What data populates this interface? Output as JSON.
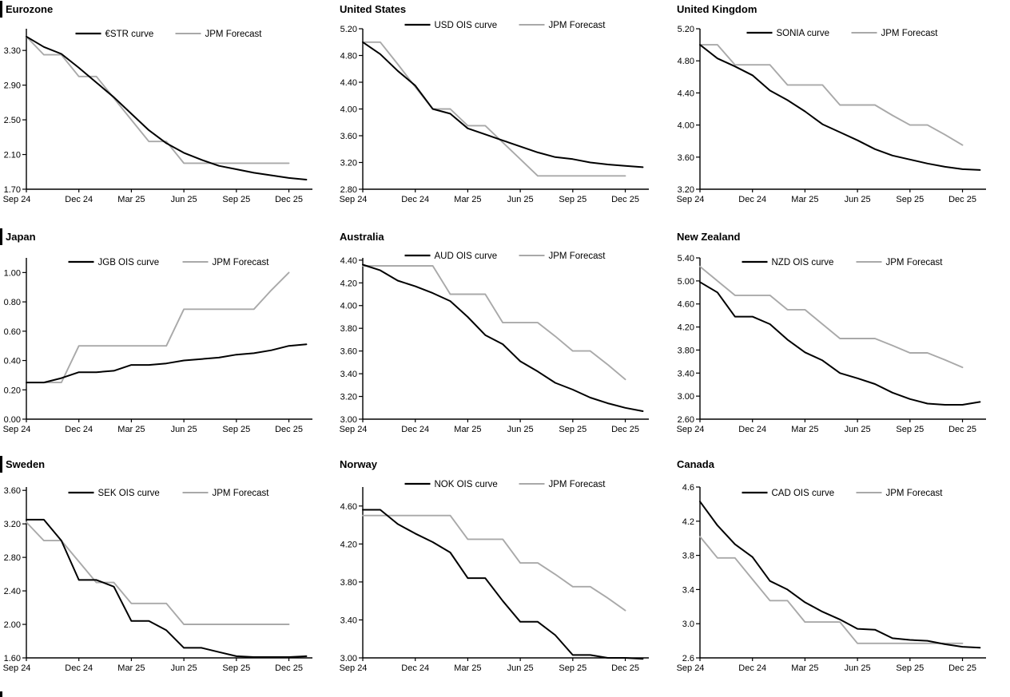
{
  "styles": {
    "background": "#ffffff",
    "curve_color": "#000000",
    "forecast_color": "#a9a9a9",
    "axis_color": "#000000",
    "text_color": "#000000"
  },
  "chart_data": [
    {
      "title": "Eurozone",
      "type": "line",
      "grid": false,
      "legend_position": "top-center",
      "x_unit": "monthly, Sep 2024 - Jan 2026",
      "x_ticks": [
        "Sep 24",
        "Dec 24",
        "Mar 25",
        "Jun 25",
        "Sep 25",
        "Dec 25"
      ],
      "y_ticks": [
        "1.70",
        "2.10",
        "2.50",
        "2.90",
        "3.30"
      ],
      "ylim": [
        1.7,
        3.55
      ],
      "series": [
        {
          "name": "€STR curve",
          "role": "curve",
          "color": "#000000",
          "values": [
            3.46,
            3.34,
            3.26,
            3.1,
            2.93,
            2.76,
            2.57,
            2.38,
            2.23,
            2.12,
            2.04,
            1.97,
            1.93,
            1.89,
            1.86,
            1.83,
            1.81
          ]
        },
        {
          "name": "JPM Forecast",
          "role": "forecast",
          "color": "#a9a9a9",
          "values": [
            3.46,
            3.25,
            3.25,
            3.0,
            3.0,
            2.75,
            2.5,
            2.25,
            2.25,
            2.0,
            2.0,
            2.0,
            2.0,
            2.0,
            2.0,
            2.0
          ]
        }
      ]
    },
    {
      "title": "United States",
      "type": "line",
      "grid": false,
      "legend_position": "top-center",
      "x_unit": "monthly, Sep 2024 - Jan 2026",
      "x_ticks": [
        "Sep 24",
        "Dec 24",
        "Mar 25",
        "Jun 25",
        "Sep 25",
        "Dec 25"
      ],
      "y_ticks": [
        "2.80",
        "3.20",
        "3.60",
        "4.00",
        "4.40",
        "4.80",
        "5.20"
      ],
      "ylim": [
        2.8,
        5.2
      ],
      "series": [
        {
          "name": "USD OIS curve",
          "role": "curve",
          "color": "#000000",
          "values": [
            5.0,
            4.82,
            4.57,
            4.35,
            4.0,
            3.93,
            3.71,
            3.62,
            3.53,
            3.44,
            3.35,
            3.28,
            3.25,
            3.2,
            3.17,
            3.15,
            3.13
          ]
        },
        {
          "name": "JPM Forecast",
          "role": "forecast",
          "color": "#a9a9a9",
          "values": [
            5.0,
            5.0,
            4.67,
            4.33,
            4.0,
            4.0,
            3.75,
            3.75,
            3.5,
            3.25,
            3.0,
            3.0,
            3.0,
            3.0,
            3.0,
            3.0
          ]
        }
      ]
    },
    {
      "title": "United Kingdom",
      "type": "line",
      "grid": false,
      "legend_position": "top-center",
      "x_unit": "monthly, Sep 2024 - Jan 2026",
      "x_ticks": [
        "Sep 24",
        "Dec 24",
        "Mar 25",
        "Jun 25",
        "Sep 25",
        "Dec 25"
      ],
      "y_ticks": [
        "3.20",
        "3.60",
        "4.00",
        "4.40",
        "4.80",
        "5.20"
      ],
      "ylim": [
        3.2,
        5.2
      ],
      "series": [
        {
          "name": "SONIA curve",
          "role": "curve",
          "color": "#000000",
          "values": [
            5.0,
            4.83,
            4.73,
            4.62,
            4.43,
            4.31,
            4.17,
            4.01,
            3.91,
            3.81,
            3.7,
            3.62,
            3.57,
            3.52,
            3.48,
            3.45,
            3.44
          ]
        },
        {
          "name": "JPM Forecast",
          "role": "forecast",
          "color": "#a9a9a9",
          "values": [
            5.0,
            5.0,
            4.75,
            4.75,
            4.75,
            4.5,
            4.5,
            4.5,
            4.25,
            4.25,
            4.25,
            4.12,
            4.0,
            4.0,
            3.88,
            3.75
          ]
        }
      ]
    },
    {
      "title": "Japan",
      "type": "line",
      "grid": false,
      "legend_position": "top-center",
      "x_unit": "monthly, Sep 2024 - Jan 2026",
      "x_ticks": [
        "Sep 24",
        "Dec 24",
        "Mar 25",
        "Jun 25",
        "Sep 25",
        "Dec 25"
      ],
      "y_ticks": [
        "0.00",
        "0.20",
        "0.40",
        "0.60",
        "0.80",
        "1.00"
      ],
      "ylim": [
        0.0,
        1.1
      ],
      "series": [
        {
          "name": "JGB OIS curve",
          "role": "curve",
          "color": "#000000",
          "values": [
            0.25,
            0.25,
            0.28,
            0.32,
            0.32,
            0.33,
            0.37,
            0.37,
            0.38,
            0.4,
            0.41,
            0.42,
            0.44,
            0.45,
            0.47,
            0.5,
            0.51
          ]
        },
        {
          "name": "JPM Forecast",
          "role": "forecast",
          "color": "#a9a9a9",
          "values": [
            0.25,
            0.25,
            0.25,
            0.5,
            0.5,
            0.5,
            0.5,
            0.5,
            0.5,
            0.75,
            0.75,
            0.75,
            0.75,
            0.75,
            0.88,
            1.0
          ]
        }
      ]
    },
    {
      "title": "Australia",
      "type": "line",
      "grid": false,
      "legend_position": "top-center",
      "x_unit": "monthly, Sep 2024 - Jan 2026",
      "x_ticks": [
        "Sep 24",
        "Dec 24",
        "Mar 25",
        "Jun 25",
        "Sep 25",
        "Dec 25"
      ],
      "y_ticks": [
        "3.00",
        "3.20",
        "3.40",
        "3.60",
        "3.80",
        "4.00",
        "4.20",
        "4.40"
      ],
      "ylim": [
        3.0,
        4.42
      ],
      "series": [
        {
          "name": "AUD OIS curve",
          "role": "curve",
          "color": "#000000",
          "values": [
            4.36,
            4.31,
            4.22,
            4.17,
            4.11,
            4.04,
            3.9,
            3.74,
            3.66,
            3.51,
            3.42,
            3.32,
            3.26,
            3.19,
            3.14,
            3.1,
            3.07
          ]
        },
        {
          "name": "JPM Forecast",
          "role": "forecast",
          "color": "#a9a9a9",
          "values": [
            4.35,
            4.35,
            4.35,
            4.35,
            4.35,
            4.1,
            4.1,
            4.1,
            3.85,
            3.85,
            3.85,
            3.73,
            3.6,
            3.6,
            3.48,
            3.35
          ]
        }
      ]
    },
    {
      "title": "New Zealand",
      "type": "line",
      "grid": false,
      "legend_position": "top-center",
      "x_unit": "monthly, Sep 2024 - Jan 2026",
      "x_ticks": [
        "Sep 24",
        "Dec 24",
        "Mar 25",
        "Jun 25",
        "Sep 25",
        "Dec 25"
      ],
      "y_ticks": [
        "2.60",
        "3.00",
        "3.40",
        "3.80",
        "4.20",
        "4.60",
        "5.00",
        "5.40"
      ],
      "ylim": [
        2.6,
        5.4
      ],
      "series": [
        {
          "name": "NZD OIS curve",
          "role": "curve",
          "color": "#000000",
          "values": [
            4.98,
            4.8,
            4.38,
            4.38,
            4.25,
            3.98,
            3.76,
            3.62,
            3.4,
            3.31,
            3.21,
            3.06,
            2.95,
            2.87,
            2.85,
            2.85,
            2.9
          ]
        },
        {
          "name": "JPM Forecast",
          "role": "forecast",
          "color": "#a9a9a9",
          "values": [
            5.25,
            5.0,
            4.75,
            4.75,
            4.75,
            4.5,
            4.5,
            4.25,
            4.0,
            4.0,
            4.0,
            3.88,
            3.75,
            3.75,
            3.63,
            3.5
          ]
        }
      ]
    },
    {
      "title": "Sweden",
      "type": "line",
      "grid": false,
      "legend_position": "top-center",
      "x_unit": "monthly, Sep 2024 - Jan 2026",
      "x_ticks": [
        "Sep 24",
        "Dec 24",
        "Mar 25",
        "Jun 25",
        "Sep 25",
        "Dec 25"
      ],
      "y_ticks": [
        "1.60",
        "2.00",
        "2.40",
        "2.80",
        "3.20",
        "3.60"
      ],
      "ylim": [
        1.6,
        3.64
      ],
      "series": [
        {
          "name": "SEK OIS curve",
          "role": "curve",
          "color": "#000000",
          "values": [
            3.25,
            3.25,
            3.0,
            2.53,
            2.53,
            2.45,
            2.04,
            2.04,
            1.93,
            1.72,
            1.72,
            1.67,
            1.62,
            1.61,
            1.61,
            1.61,
            1.62
          ]
        },
        {
          "name": "JPM Forecast",
          "role": "forecast",
          "color": "#a9a9a9",
          "values": [
            3.22,
            3.0,
            3.0,
            2.75,
            2.5,
            2.5,
            2.25,
            2.25,
            2.25,
            2.0,
            2.0,
            2.0,
            2.0,
            2.0,
            2.0,
            2.0
          ]
        }
      ]
    },
    {
      "title": "Norway",
      "type": "line",
      "grid": false,
      "legend_position": "top-center",
      "x_unit": "monthly, Sep 2024 - Jan 2026",
      "x_ticks": [
        "Sep 24",
        "Dec 24",
        "Mar 25",
        "Jun 25",
        "Sep 25",
        "Dec 25"
      ],
      "y_ticks": [
        "3.00",
        "3.40",
        "3.80",
        "4.20",
        "4.60"
      ],
      "ylim": [
        3.0,
        4.8
      ],
      "series": [
        {
          "name": "NOK OIS curve",
          "role": "curve",
          "color": "#000000",
          "values": [
            4.56,
            4.56,
            4.41,
            4.31,
            4.22,
            4.11,
            3.84,
            3.84,
            3.6,
            3.38,
            3.38,
            3.24,
            3.03,
            3.03,
            3.0,
            3.0,
            2.99
          ]
        },
        {
          "name": "JPM Forecast",
          "role": "forecast",
          "color": "#a9a9a9",
          "values": [
            4.5,
            4.5,
            4.5,
            4.5,
            4.5,
            4.5,
            4.25,
            4.25,
            4.25,
            4.0,
            4.0,
            3.88,
            3.75,
            3.75,
            3.63,
            3.5
          ]
        }
      ]
    },
    {
      "title": "Canada",
      "type": "line",
      "grid": false,
      "legend_position": "top-center",
      "x_unit": "monthly, Sep 2024 - Jan 2026",
      "x_ticks": [
        "Sep 24",
        "Dec 24",
        "Mar 25",
        "Jun 25",
        "Sep 25",
        "Dec 25"
      ],
      "y_ticks": [
        "2.6",
        "3.0",
        "3.4",
        "3.8",
        "4.2",
        "4.6"
      ],
      "ylim": [
        2.6,
        4.6
      ],
      "series": [
        {
          "name": "CAD OIS curve",
          "role": "curve",
          "color": "#000000",
          "values": [
            4.43,
            4.15,
            3.93,
            3.78,
            3.5,
            3.4,
            3.25,
            3.14,
            3.05,
            2.94,
            2.93,
            2.83,
            2.81,
            2.8,
            2.76,
            2.73,
            2.72
          ]
        },
        {
          "name": "JPM Forecast",
          "role": "forecast",
          "color": "#a9a9a9",
          "values": [
            4.02,
            3.77,
            3.77,
            3.52,
            3.27,
            3.27,
            3.02,
            3.02,
            3.02,
            2.77,
            2.77,
            2.77,
            2.77,
            2.77,
            2.77,
            2.77
          ]
        }
      ]
    }
  ]
}
